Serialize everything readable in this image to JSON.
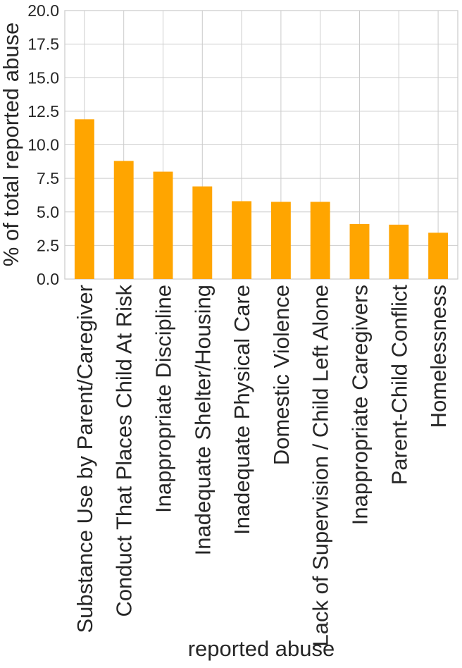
{
  "chart_data": {
    "type": "bar",
    "categories": [
      "Substance Use by Parent/Caregiver",
      "Conduct That Places Child At Risk",
      "Inappropriate Discipline",
      "Inadequate Shelter/Housing",
      "Inadequate Physical Care",
      "Domestic Violence",
      "Lack of Supervision / Child Left Alone",
      "Inappropriate Caregivers",
      "Parent-Child Conflict",
      "Homelessness"
    ],
    "values": [
      11.9,
      8.8,
      8.0,
      6.9,
      5.8,
      5.75,
      5.75,
      4.1,
      4.05,
      3.45
    ],
    "xlabel": "reported abuse",
    "ylabel": "% of total reported abuse",
    "ylim": [
      0,
      20
    ],
    "yticks": [
      "0.0",
      "2.5",
      "5.0",
      "7.5",
      "10.0",
      "12.5",
      "15.0",
      "17.5",
      "20.0"
    ],
    "bar_color": "#ffa500",
    "grid": true,
    "legend": "none"
  }
}
